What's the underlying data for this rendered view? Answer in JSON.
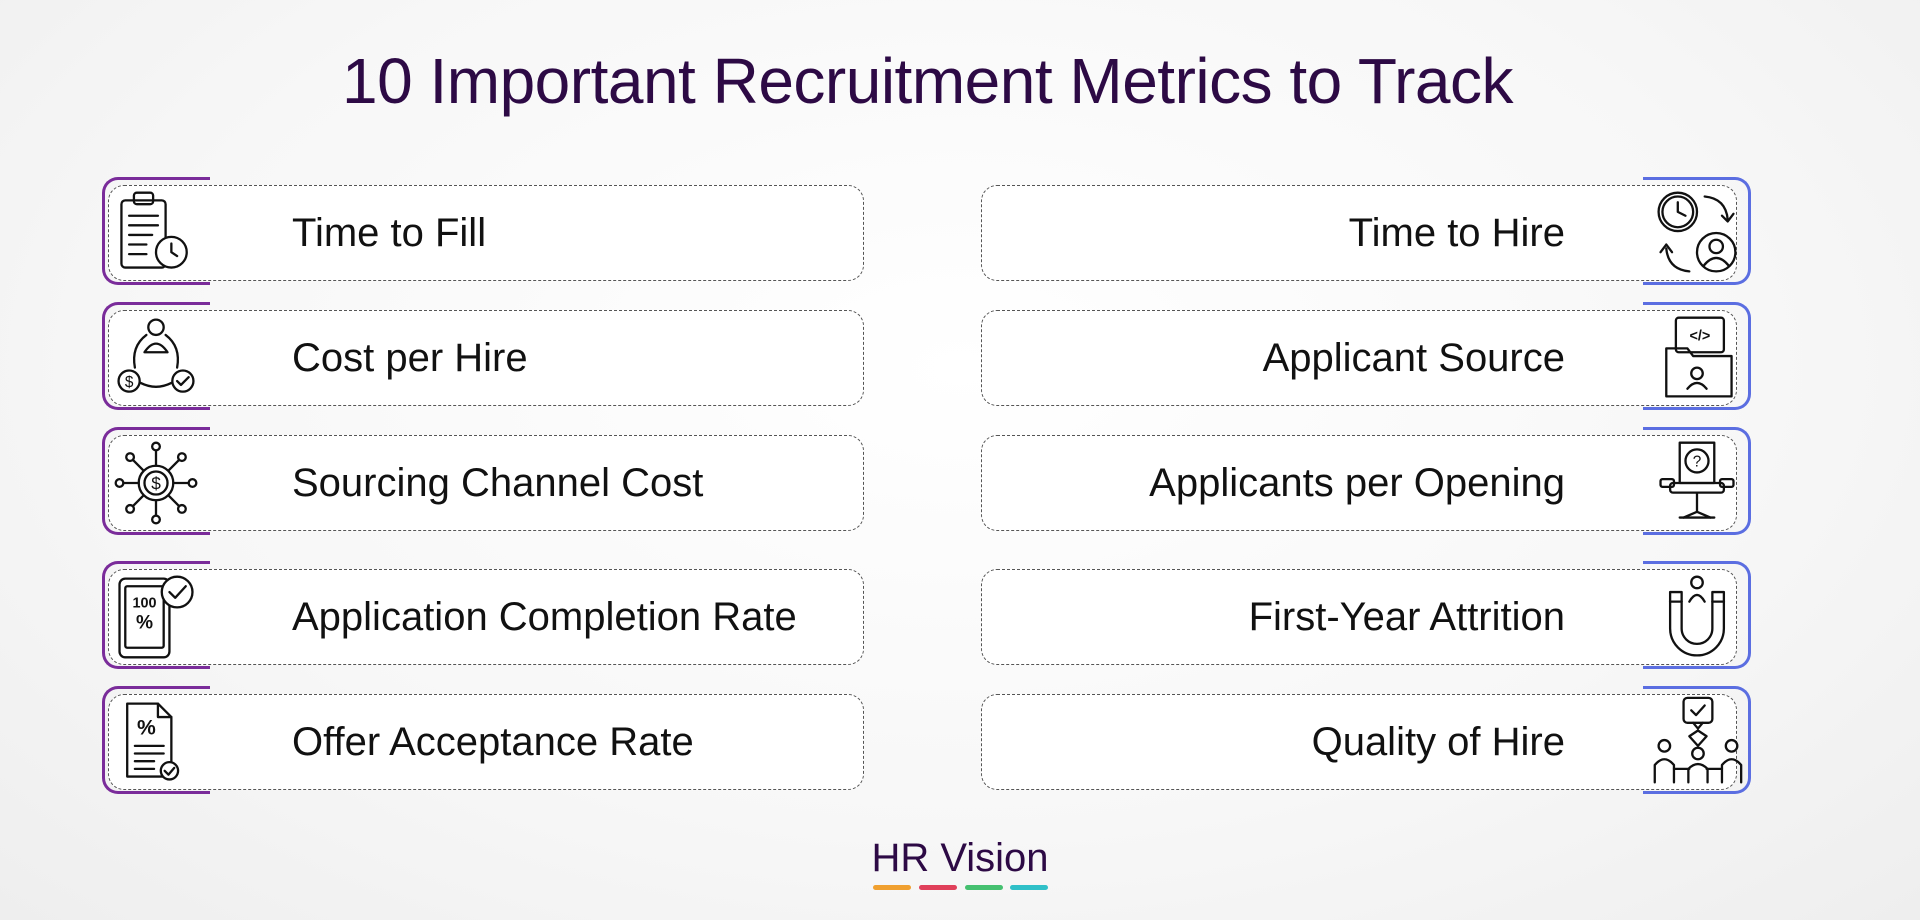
{
  "title": "10 Important Recruitment Metrics to Track",
  "left_metrics": [
    {
      "label": "Time to Fill",
      "icon": "clipboard-clock-icon"
    },
    {
      "label": "Cost per Hire",
      "icon": "person-cost-cycle-icon"
    },
    {
      "label": "Sourcing Channel Cost",
      "icon": "dollar-network-icon"
    },
    {
      "label": "Application Completion Rate",
      "icon": "phone-percent-check-icon"
    },
    {
      "label": "Offer Acceptance Rate",
      "icon": "document-percent-check-icon"
    }
  ],
  "right_metrics": [
    {
      "label": "Time to Hire",
      "icon": "clock-person-cycle-icon"
    },
    {
      "label": "Applicant Source",
      "icon": "code-folder-person-icon"
    },
    {
      "label": "Applicants per Opening",
      "icon": "question-office-chair-icon"
    },
    {
      "label": "First-Year Attrition",
      "icon": "magnet-person-icon"
    },
    {
      "label": "Quality of Hire",
      "icon": "team-diamond-check-icon"
    }
  ],
  "brand": {
    "name": "HR Vision",
    "bar_colors": [
      "#f0a030",
      "#e0405a",
      "#45c070",
      "#30c0c8"
    ]
  },
  "colors": {
    "left_accent": "#7a2c9a",
    "right_accent": "#5b6ee1",
    "title": "#2d0a45"
  }
}
